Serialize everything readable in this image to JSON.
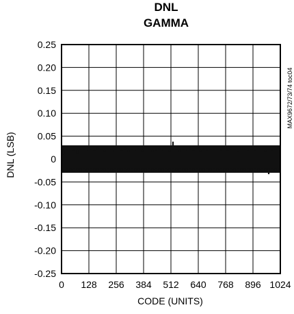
{
  "chart_data": {
    "type": "bar",
    "title": "DNL",
    "subtitle": "GAMMA",
    "xlabel": "CODE (UNITS)",
    "ylabel": "DNL (LSB)",
    "xlim": [
      0,
      1024
    ],
    "ylim": [
      -0.25,
      0.25
    ],
    "x_ticks": [
      0,
      128,
      256,
      384,
      512,
      640,
      768,
      896,
      1024
    ],
    "y_ticks": [
      0.25,
      0.2,
      0.15,
      0.1,
      0.05,
      0,
      -0.05,
      -0.1,
      -0.15,
      -0.2,
      -0.25
    ],
    "x_tick_labels": [
      "0",
      "128",
      "256",
      "384",
      "512",
      "640",
      "768",
      "896",
      "1024"
    ],
    "y_tick_labels": [
      "0.25",
      "0.20",
      "0.15",
      "0.10",
      "0.05",
      "0",
      "-0.05",
      "-0.10",
      "-0.15",
      "-0.20",
      "-0.25"
    ],
    "grid": true,
    "band": {
      "x_start": 0,
      "x_end": 1023,
      "y_min": -0.03,
      "y_max": 0.03
    },
    "series": [
      {
        "x": [
          0,
          16,
          32,
          48,
          64,
          80,
          96,
          112,
          128,
          144,
          160,
          176,
          192,
          208,
          224,
          240,
          256,
          272,
          288,
          304,
          320,
          336,
          352,
          368,
          384,
          400,
          416,
          432,
          448,
          464,
          480,
          496,
          512,
          528,
          544,
          560,
          576,
          592,
          608,
          624,
          640,
          656,
          672,
          688,
          704,
          720,
          736,
          752,
          768,
          784,
          800,
          816,
          832,
          848,
          864,
          880,
          896,
          912,
          928,
          944,
          960,
          976,
          992,
          1008
        ],
        "y": [
          0.01,
          0.015,
          0.02,
          0.018,
          0.012,
          0.022,
          0.016,
          0.019,
          0.014,
          0.018,
          0.025,
          0.021,
          0.017,
          0.028,
          0.022,
          0.015,
          0.02,
          0.018,
          0.024,
          0.016,
          0.021,
          0.019,
          0.023,
          0.017,
          0.02,
          0.022,
          0.015,
          0.018,
          0.024,
          0.019,
          0.02,
          0.017,
          0.038,
          0.021,
          0.016,
          0.022,
          0.019,
          0.024,
          0.018,
          0.02,
          0.017,
          0.023,
          0.019,
          0.021,
          0.016,
          0.022,
          0.019,
          0.02,
          0.018,
          0.024,
          0.021,
          0.017,
          0.026,
          0.023,
          0.019,
          0.021,
          0.018,
          0.024,
          0.02,
          0.017,
          0.022,
          0.019,
          0.021,
          0.02
        ]
      },
      {
        "x": [
          0,
          16,
          32,
          48,
          64,
          80,
          96,
          112,
          128,
          144,
          160,
          176,
          192,
          208,
          224,
          240,
          256,
          272,
          288,
          304,
          320,
          336,
          352,
          368,
          384,
          400,
          416,
          432,
          448,
          464,
          480,
          496,
          512,
          528,
          544,
          560,
          576,
          592,
          608,
          624,
          640,
          656,
          672,
          688,
          704,
          720,
          736,
          752,
          768,
          784,
          800,
          816,
          832,
          848,
          864,
          880,
          896,
          912,
          928,
          944,
          960,
          976,
          992,
          1008
        ],
        "y": [
          -0.02,
          -0.028,
          -0.025,
          -0.027,
          -0.024,
          -0.028,
          -0.026,
          -0.029,
          -0.025,
          -0.027,
          -0.028,
          -0.024,
          -0.026,
          -0.03,
          -0.027,
          -0.025,
          -0.028,
          -0.026,
          -0.029,
          -0.024,
          -0.027,
          -0.028,
          -0.025,
          -0.027,
          -0.03,
          -0.026,
          -0.028,
          -0.025,
          -0.027,
          -0.029,
          -0.026,
          -0.028,
          -0.027,
          -0.025,
          -0.028,
          -0.026,
          -0.029,
          -0.027,
          -0.025,
          -0.028,
          -0.026,
          -0.027,
          -0.029,
          -0.025,
          -0.028,
          -0.026,
          -0.027,
          -0.028,
          -0.025,
          -0.027,
          -0.029,
          -0.026,
          -0.028,
          -0.025,
          -0.027,
          -0.028,
          -0.026,
          -0.029,
          -0.027,
          -0.025,
          -0.033,
          -0.027,
          -0.028,
          -0.026
        ]
      }
    ]
  },
  "side_note": "MAX9672/73/74 toc04"
}
